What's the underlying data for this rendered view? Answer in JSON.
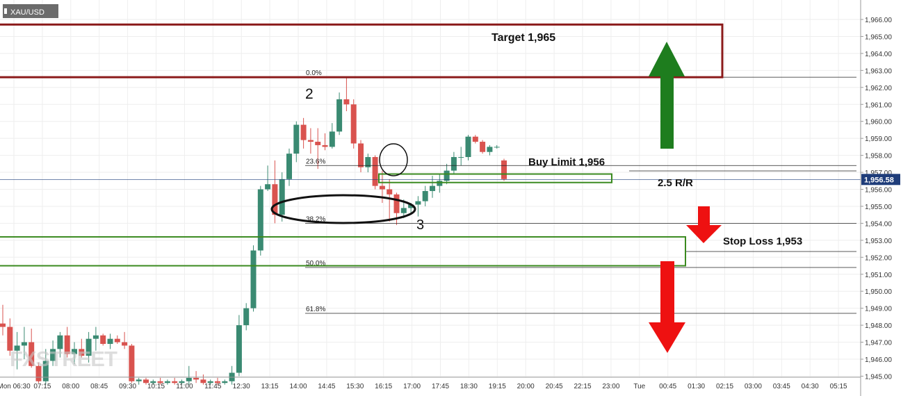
{
  "chart_data": {
    "type": "candlestick",
    "symbol": "XAU/USD",
    "price_label": "1,956.58",
    "last_price": 1956.58,
    "ylim": [
      1944.5,
      1966.8
    ],
    "y_ticks": [
      "1,945.00",
      "1,946.00",
      "1,947.00",
      "1,948.00",
      "1,949.00",
      "1,950.00",
      "1,951.00",
      "1,952.00",
      "1,953.00",
      "1,954.00",
      "1,955.00",
      "1,956.00",
      "1,957.00",
      "1,958.00",
      "1,959.00",
      "1,960.00",
      "1,961.00",
      "1,962.00",
      "1,963.00",
      "1,964.00",
      "1,965.00",
      "1,966.00"
    ],
    "x_ticks": [
      "Mon 06:30",
      "07:15",
      "08:00",
      "08:45",
      "09:30",
      "10:15",
      "11:00",
      "11:45",
      "12:30",
      "13:15",
      "14:00",
      "14:45",
      "15:30",
      "16:15",
      "17:00",
      "17:45",
      "18:30",
      "19:15",
      "20:00",
      "20:45",
      "22:15",
      "23:00",
      "Tue",
      "00:45",
      "01:30",
      "02:15",
      "03:00",
      "03:45",
      "04:30",
      "05:15"
    ],
    "candles": [
      {
        "o": 1948.1,
        "h": 1949.2,
        "l": 1947.4,
        "c": 1947.9
      },
      {
        "o": 1947.9,
        "h": 1948.4,
        "l": 1946.2,
        "c": 1946.5
      },
      {
        "o": 1946.5,
        "h": 1947.6,
        "l": 1945.4,
        "c": 1946.8
      },
      {
        "o": 1946.8,
        "h": 1947.9,
        "l": 1946.0,
        "c": 1947.0
      },
      {
        "o": 1947.0,
        "h": 1947.8,
        "l": 1945.5,
        "c": 1945.6
      },
      {
        "o": 1945.6,
        "h": 1945.8,
        "l": 1944.6,
        "c": 1944.7
      },
      {
        "o": 1944.7,
        "h": 1946.6,
        "l": 1944.5,
        "c": 1945.9
      },
      {
        "o": 1945.9,
        "h": 1947.1,
        "l": 1945.6,
        "c": 1946.6
      },
      {
        "o": 1946.6,
        "h": 1947.6,
        "l": 1946.1,
        "c": 1947.4
      },
      {
        "o": 1947.4,
        "h": 1947.9,
        "l": 1946.1,
        "c": 1946.3
      },
      {
        "o": 1946.3,
        "h": 1947.0,
        "l": 1945.7,
        "c": 1946.6
      },
      {
        "o": 1946.6,
        "h": 1947.2,
        "l": 1946.1,
        "c": 1946.2
      },
      {
        "o": 1946.2,
        "h": 1947.6,
        "l": 1945.8,
        "c": 1947.2
      },
      {
        "o": 1947.2,
        "h": 1947.9,
        "l": 1946.5,
        "c": 1947.4
      },
      {
        "o": 1947.4,
        "h": 1947.5,
        "l": 1946.8,
        "c": 1946.9
      },
      {
        "o": 1946.9,
        "h": 1947.5,
        "l": 1946.6,
        "c": 1947.2
      },
      {
        "o": 1947.2,
        "h": 1947.4,
        "l": 1946.9,
        "c": 1947.0
      },
      {
        "o": 1947.0,
        "h": 1947.6,
        "l": 1946.6,
        "c": 1946.8
      },
      {
        "o": 1946.8,
        "h": 1946.9,
        "l": 1944.6,
        "c": 1944.7
      },
      {
        "o": 1944.7,
        "h": 1944.9,
        "l": 1944.5,
        "c": 1944.8
      },
      {
        "o": 1944.8,
        "h": 1944.9,
        "l": 1944.5,
        "c": 1944.6
      },
      {
        "o": 1944.6,
        "h": 1944.8,
        "l": 1944.5,
        "c": 1944.7
      },
      {
        "o": 1944.7,
        "h": 1944.9,
        "l": 1944.5,
        "c": 1944.6
      },
      {
        "o": 1944.6,
        "h": 1944.8,
        "l": 1944.5,
        "c": 1944.7
      },
      {
        "o": 1944.7,
        "h": 1944.9,
        "l": 1944.5,
        "c": 1944.6
      },
      {
        "o": 1944.6,
        "h": 1944.8,
        "l": 1944.5,
        "c": 1944.7
      },
      {
        "o": 1944.7,
        "h": 1945.6,
        "l": 1944.5,
        "c": 1944.9
      },
      {
        "o": 1944.9,
        "h": 1945.3,
        "l": 1944.6,
        "c": 1944.8
      },
      {
        "o": 1944.8,
        "h": 1945.1,
        "l": 1944.5,
        "c": 1944.6
      },
      {
        "o": 1944.6,
        "h": 1944.8,
        "l": 1944.5,
        "c": 1944.7
      },
      {
        "o": 1944.7,
        "h": 1944.9,
        "l": 1944.5,
        "c": 1944.6
      },
      {
        "o": 1944.6,
        "h": 1944.8,
        "l": 1944.5,
        "c": 1944.7
      },
      {
        "o": 1944.7,
        "h": 1945.6,
        "l": 1944.5,
        "c": 1945.2
      },
      {
        "o": 1945.2,
        "h": 1948.6,
        "l": 1945.0,
        "c": 1948.0
      },
      {
        "o": 1948.0,
        "h": 1949.3,
        "l": 1947.7,
        "c": 1949.0
      },
      {
        "o": 1949.0,
        "h": 1952.7,
        "l": 1948.8,
        "c": 1952.4
      },
      {
        "o": 1952.4,
        "h": 1956.2,
        "l": 1952.1,
        "c": 1956.0
      },
      {
        "o": 1956.0,
        "h": 1957.4,
        "l": 1955.9,
        "c": 1956.3
      },
      {
        "o": 1956.3,
        "h": 1957.7,
        "l": 1954.0,
        "c": 1954.5
      },
      {
        "o": 1954.5,
        "h": 1957.0,
        "l": 1954.1,
        "c": 1956.6
      },
      {
        "o": 1956.6,
        "h": 1958.4,
        "l": 1956.2,
        "c": 1958.1
      },
      {
        "o": 1958.1,
        "h": 1960.0,
        "l": 1957.6,
        "c": 1959.8
      },
      {
        "o": 1959.8,
        "h": 1960.2,
        "l": 1958.4,
        "c": 1958.9
      },
      {
        "o": 1958.9,
        "h": 1959.6,
        "l": 1958.1,
        "c": 1958.8
      },
      {
        "o": 1958.8,
        "h": 1959.6,
        "l": 1957.2,
        "c": 1958.6
      },
      {
        "o": 1958.6,
        "h": 1959.3,
        "l": 1958.3,
        "c": 1958.5
      },
      {
        "o": 1958.5,
        "h": 1959.9,
        "l": 1958.4,
        "c": 1959.4
      },
      {
        "o": 1959.4,
        "h": 1961.7,
        "l": 1959.2,
        "c": 1961.3
      },
      {
        "o": 1961.3,
        "h": 1962.6,
        "l": 1960.6,
        "c": 1961.0
      },
      {
        "o": 1961.0,
        "h": 1961.3,
        "l": 1958.4,
        "c": 1958.7
      },
      {
        "o": 1958.7,
        "h": 1958.9,
        "l": 1957.0,
        "c": 1957.3
      },
      {
        "o": 1957.3,
        "h": 1958.1,
        "l": 1957.0,
        "c": 1957.9
      },
      {
        "o": 1957.9,
        "h": 1958.0,
        "l": 1956.0,
        "c": 1956.2
      },
      {
        "o": 1956.2,
        "h": 1957.1,
        "l": 1955.2,
        "c": 1956.0
      },
      {
        "o": 1956.0,
        "h": 1956.6,
        "l": 1954.1,
        "c": 1955.7
      },
      {
        "o": 1955.7,
        "h": 1955.8,
        "l": 1953.9,
        "c": 1954.6
      },
      {
        "o": 1954.6,
        "h": 1955.4,
        "l": 1954.3,
        "c": 1954.9
      },
      {
        "o": 1954.9,
        "h": 1955.2,
        "l": 1954.5,
        "c": 1955.1
      },
      {
        "o": 1955.1,
        "h": 1955.6,
        "l": 1954.4,
        "c": 1955.3
      },
      {
        "o": 1955.3,
        "h": 1956.2,
        "l": 1955.0,
        "c": 1955.9
      },
      {
        "o": 1955.9,
        "h": 1956.8,
        "l": 1955.5,
        "c": 1956.2
      },
      {
        "o": 1956.2,
        "h": 1956.9,
        "l": 1955.8,
        "c": 1956.5
      },
      {
        "o": 1956.5,
        "h": 1957.5,
        "l": 1956.3,
        "c": 1957.1
      },
      {
        "o": 1957.1,
        "h": 1958.2,
        "l": 1956.9,
        "c": 1957.9
      },
      {
        "o": 1957.9,
        "h": 1958.5,
        "l": 1957.4,
        "c": 1957.9
      },
      {
        "o": 1957.9,
        "h": 1959.2,
        "l": 1957.7,
        "c": 1959.1
      },
      {
        "o": 1959.1,
        "h": 1959.2,
        "l": 1958.7,
        "c": 1958.8
      },
      {
        "o": 1958.8,
        "h": 1958.9,
        "l": 1958.1,
        "c": 1958.2
      },
      {
        "o": 1958.2,
        "h": 1958.6,
        "l": 1958.0,
        "c": 1958.5
      },
      {
        "o": 1958.5,
        "h": 1958.6,
        "l": 1958.4,
        "c": 1958.5
      },
      {
        "o": 1957.7,
        "h": 1957.8,
        "l": 1956.5,
        "c": 1956.6
      }
    ],
    "fib_levels": [
      {
        "label": "0.0%",
        "price": 1962.6
      },
      {
        "label": "23.6%",
        "price": 1957.4
      },
      {
        "label": "38.2%",
        "price": 1954.0
      },
      {
        "label": "50.0%",
        "price": 1951.4
      },
      {
        "label": "61.8%",
        "price": 1948.7
      }
    ],
    "zones": [
      {
        "name": "target",
        "top": 1965.7,
        "bottom": 1962.6
      },
      {
        "name": "buy-limit",
        "top": 1956.9,
        "bottom": 1956.4
      },
      {
        "name": "stop-loss",
        "top": 1953.2,
        "bottom": 1951.5
      }
    ],
    "annotations": {
      "target": "Target 1,965",
      "buy_limit": "Buy Limit 1,956",
      "rr": "2.5 R/R",
      "stop_loss": "Stop Loss 1,953",
      "wave2": "2",
      "wave3": "3"
    },
    "watermark": "FXSTREET",
    "colors": {
      "up": "#3a8a72",
      "down": "#d9534f",
      "target": "#8b1a1a",
      "zone": "#3a8a1f",
      "arrow_up": "#1e7d1e",
      "arrow_down": "#ee1111"
    }
  }
}
